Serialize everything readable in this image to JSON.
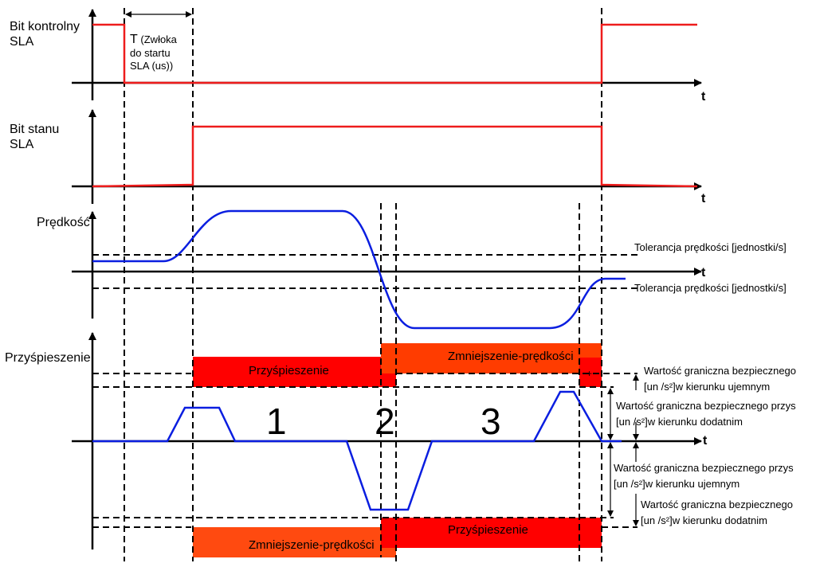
{
  "colors": {
    "signal": "#ee1c1c",
    "velocity": "#0a1ee0",
    "accel_block": "#ff0000",
    "decel_block": "#ff3c00"
  },
  "panels": {
    "control_bit": {
      "label_1": "Bit kontrolny",
      "label_2": "SLA",
      "axis": "t"
    },
    "status_bit": {
      "label_1": "Bit stanu",
      "label_2": "SLA",
      "axis": "t"
    },
    "velocity": {
      "label": "Prędkość",
      "axis": "t",
      "tol_upper": "Tolerancja prędkości [jednostki/s]",
      "tol_lower": "Tolerancja prędkości [jednostki/s]"
    },
    "acceleration": {
      "label": "Przyśpieszenie",
      "axis": "t"
    }
  },
  "delay": {
    "symbol": "T",
    "line1": "(Zwłoka",
    "line2": "do startu",
    "line3": "SLA (us))"
  },
  "blocks": {
    "top_accel": "Przyśpieszenie",
    "top_decel": "Zmniejszenie-prędkości",
    "small_plus": "+",
    "bottom_decel": "Zmniejszenie-prędkości",
    "bottom_accel": "Przyśpieszenie"
  },
  "phases": [
    "1",
    "2",
    "3"
  ],
  "limits": [
    {
      "line1": "Wartość graniczna bezpiecznego",
      "line2": "[un    /s²]w kierunku ujemnym"
    },
    {
      "line1": "Wartość graniczna bezpiecznego przys",
      "line2": "[un    /s²]w kierunku dodatnim"
    },
    {
      "line1": "Wartość graniczna bezpiecznego przys",
      "line2": "[un    /s²]w kierunku ujemnym"
    },
    {
      "line1": "Wartość graniczna bezpiecznego",
      "line2": "[un    /s²]w kierunku dodatnim"
    }
  ]
}
